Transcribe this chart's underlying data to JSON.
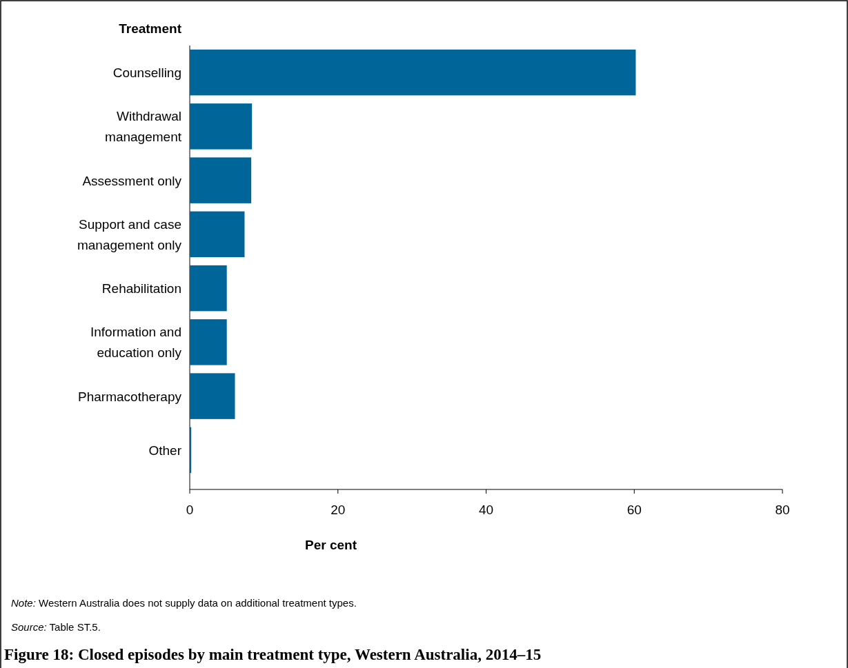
{
  "chart_data": {
    "type": "bar",
    "orientation": "horizontal",
    "title": "Figure 18: Closed episodes by main treatment type, Western Australia, 2014–15",
    "ylabel": "Treatment",
    "xlabel": "Per cent",
    "categories": [
      "Counselling",
      "Withdrawal management",
      "Assessment only",
      "Support and case management only",
      "Rehabilitation",
      "Information and education only",
      "Pharmacotherapy",
      "Other"
    ],
    "values": [
      60.2,
      8.4,
      8.3,
      7.4,
      5.0,
      5.0,
      6.1,
      0.2
    ],
    "color": "#006699",
    "xlim": [
      0,
      80
    ],
    "xticks": [
      0,
      20,
      40,
      60,
      80
    ],
    "grid": false,
    "annotations": [
      "Note: Western Australia does not supply data on additional treatment types.",
      "Source: Table ST.5."
    ]
  }
}
